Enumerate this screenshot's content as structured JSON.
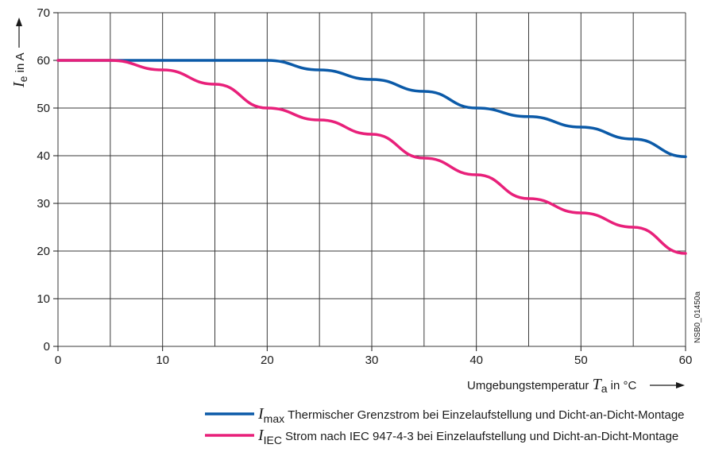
{
  "chart_data": {
    "type": "line",
    "xlabel": {
      "prefix": "Umgebungstemperatur ",
      "symbol": "T",
      "subscript": "a",
      "suffix": " in °C"
    },
    "ylabel": {
      "symbol": "I",
      "subscript": "e",
      "suffix": " in A"
    },
    "xlim": [
      0,
      60
    ],
    "ylim": [
      0,
      70
    ],
    "x_ticks": [
      0,
      10,
      20,
      30,
      40,
      50,
      60
    ],
    "y_ticks": [
      0,
      10,
      20,
      30,
      40,
      50,
      60,
      70
    ],
    "x_gridlines": [
      0,
      5,
      10,
      15,
      20,
      25,
      30,
      35,
      40,
      45,
      50,
      55,
      60
    ],
    "y_gridlines": [
      0,
      10,
      20,
      30,
      40,
      50,
      60,
      70
    ],
    "grid": true,
    "legend_position": "bottom",
    "side_note": "NSB0_01450a",
    "series": [
      {
        "name": "max",
        "symbol": "I",
        "description": "Thermischer Grenzstrom bei Einzelaufstellung und Dicht-an-Dicht-Montage",
        "color": "#0b5aa8",
        "x": [
          0,
          5,
          10,
          15,
          20,
          25,
          30,
          35,
          40,
          45,
          50,
          55,
          60
        ],
        "y": [
          60,
          60,
          60,
          60,
          60,
          58,
          56,
          53.5,
          50,
          48.2,
          46,
          43.5,
          39.8
        ]
      },
      {
        "name": "IEC",
        "symbol": "I",
        "description": "Strom nach IEC 947-4-3 bei Einzelaufstellung und Dicht-an-Dicht-Montage",
        "color": "#e8207a",
        "x": [
          0,
          5,
          10,
          15,
          20,
          25,
          30,
          35,
          40,
          45,
          50,
          55,
          60
        ],
        "y": [
          60,
          60,
          58,
          55,
          50,
          47.5,
          44.5,
          39.5,
          36,
          31,
          28,
          25,
          19.5
        ]
      }
    ]
  }
}
